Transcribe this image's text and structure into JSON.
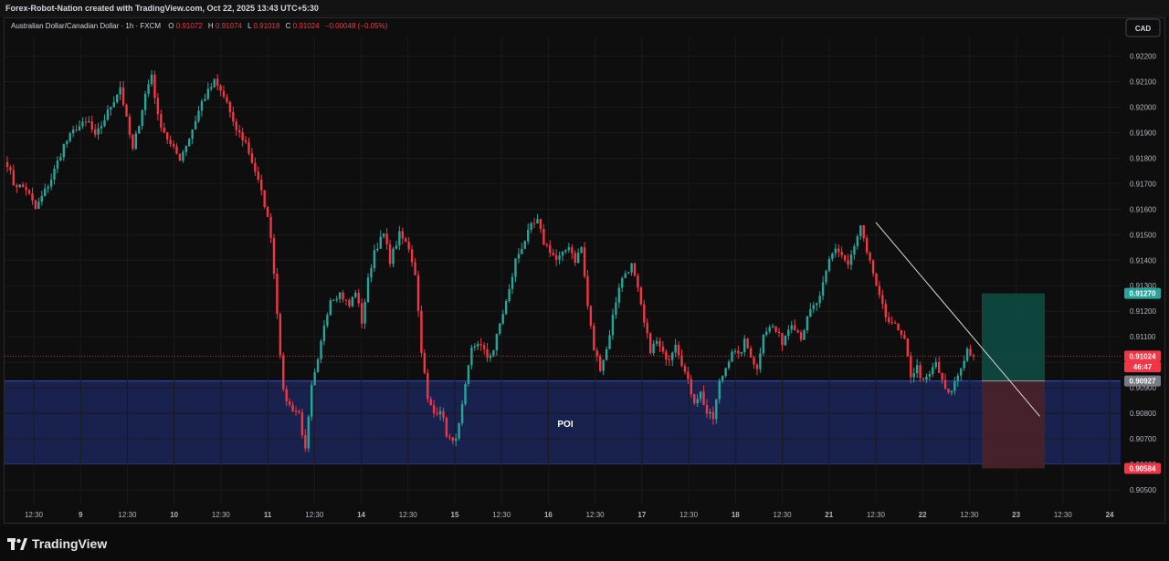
{
  "header": {
    "credit": "Forex-Robot-Nation created with TradingView.com, Oct 22, 2025 13:43 UTC+5:30"
  },
  "legend": {
    "symbol": "Australian Dollar/Canadian Dollar · 1h · FXCM",
    "o_label": "O",
    "o_value": "0.91072",
    "h_label": "H",
    "h_value": "0.91074",
    "l_label": "L",
    "l_value": "0.91018",
    "c_label": "C",
    "c_value": "0.91024",
    "change": "−0.00048 (−0.05%)"
  },
  "currency_button": "CAD",
  "footer": {
    "brand": "TradingView"
  },
  "colors": {
    "up": "#26a69a",
    "down": "#f23645",
    "poi_fill": "#1b2459",
    "poi_border": "#3a4bb0",
    "tp_fill": "#0d4a40",
    "sl_fill": "#4a2128",
    "trendline": "#d9d9d9"
  },
  "chart_data": {
    "type": "candlestick",
    "ylim": [
      0.9045,
      0.9225
    ],
    "y_ticks": [
      "0.92200",
      "0.92100",
      "0.92000",
      "0.91900",
      "0.91800",
      "0.91700",
      "0.91600",
      "0.91500",
      "0.91400",
      "0.91300",
      "0.91200",
      "0.91100",
      "0.91000",
      "0.90900",
      "0.90800",
      "0.90700",
      "0.90600",
      "0.90500"
    ],
    "x_ticks": [
      "12:30",
      "9",
      "12:30",
      "10",
      "12:30",
      "11",
      "12:30",
      "14",
      "12:30",
      "15",
      "12:30",
      "16",
      "12:30",
      "17",
      "12:30",
      "18",
      "12:30",
      "21",
      "12:30",
      "22",
      "12:30",
      "23",
      "12:30",
      "24"
    ],
    "bold_x_ticks": [
      "9",
      "10",
      "11",
      "14",
      "15",
      "16",
      "17",
      "18",
      "21",
      "22",
      "23",
      "24"
    ],
    "price_anchors": [
      [
        0,
        0.9178
      ],
      [
        2,
        0.917
      ],
      [
        6,
        0.9168
      ],
      [
        9,
        0.916
      ],
      [
        14,
        0.9172
      ],
      [
        18,
        0.9185
      ],
      [
        22,
        0.9192
      ],
      [
        26,
        0.9194
      ],
      [
        28,
        0.9188
      ],
      [
        32,
        0.9198
      ],
      [
        36,
        0.9208
      ],
      [
        38,
        0.9195
      ],
      [
        40,
        0.9183
      ],
      [
        44,
        0.9205
      ],
      [
        46,
        0.9213
      ],
      [
        48,
        0.9196
      ],
      [
        52,
        0.9185
      ],
      [
        55,
        0.918
      ],
      [
        58,
        0.9188
      ],
      [
        62,
        0.9202
      ],
      [
        66,
        0.921
      ],
      [
        70,
        0.9202
      ],
      [
        72,
        0.9193
      ],
      [
        76,
        0.9186
      ],
      [
        79,
        0.9175
      ],
      [
        82,
        0.9162
      ],
      [
        84,
        0.915
      ],
      [
        86,
        0.912
      ],
      [
        88,
        0.9088
      ],
      [
        90,
        0.9083
      ],
      [
        93,
        0.908
      ],
      [
        95,
        0.9065
      ],
      [
        97,
        0.909
      ],
      [
        99,
        0.91
      ],
      [
        101,
        0.9115
      ],
      [
        103,
        0.9125
      ],
      [
        106,
        0.9127
      ],
      [
        109,
        0.9122
      ],
      [
        111,
        0.9128
      ],
      [
        113,
        0.9116
      ],
      [
        115,
        0.9132
      ],
      [
        117,
        0.9144
      ],
      [
        120,
        0.915
      ],
      [
        122,
        0.914
      ],
      [
        125,
        0.915
      ],
      [
        128,
        0.9145
      ],
      [
        130,
        0.9135
      ],
      [
        132,
        0.9105
      ],
      [
        134,
        0.9085
      ],
      [
        136,
        0.908
      ],
      [
        138,
        0.9082
      ],
      [
        140,
        0.9072
      ],
      [
        142,
        0.9068
      ],
      [
        144,
        0.9075
      ],
      [
        146,
        0.909
      ],
      [
        148,
        0.9105
      ],
      [
        150,
        0.9108
      ],
      [
        153,
        0.9102
      ],
      [
        155,
        0.9105
      ],
      [
        157,
        0.9115
      ],
      [
        160,
        0.9128
      ],
      [
        162,
        0.914
      ],
      [
        165,
        0.9148
      ],
      [
        167,
        0.9153
      ],
      [
        169,
        0.9155
      ],
      [
        171,
        0.9147
      ],
      [
        173,
        0.9144
      ],
      [
        175,
        0.914
      ],
      [
        177,
        0.9142
      ],
      [
        179,
        0.9146
      ],
      [
        181,
        0.914
      ],
      [
        183,
        0.9145
      ],
      [
        185,
        0.9122
      ],
      [
        187,
        0.9105
      ],
      [
        189,
        0.9098
      ],
      [
        191,
        0.9105
      ],
      [
        193,
        0.9118
      ],
      [
        195,
        0.913
      ],
      [
        197,
        0.9135
      ],
      [
        199,
        0.9138
      ],
      [
        201,
        0.9128
      ],
      [
        203,
        0.9115
      ],
      [
        205,
        0.9105
      ],
      [
        207,
        0.9108
      ],
      [
        209,
        0.9103
      ],
      [
        211,
        0.9102
      ],
      [
        213,
        0.9108
      ],
      [
        215,
        0.91
      ],
      [
        217,
        0.9092
      ],
      [
        219,
        0.9085
      ],
      [
        221,
        0.9088
      ],
      [
        223,
        0.908
      ],
      [
        225,
        0.9078
      ],
      [
        227,
        0.9092
      ],
      [
        229,
        0.9098
      ],
      [
        231,
        0.9105
      ],
      [
        233,
        0.9102
      ],
      [
        235,
        0.9108
      ],
      [
        237,
        0.9103
      ],
      [
        239,
        0.9097
      ],
      [
        241,
        0.9112
      ],
      [
        244,
        0.9114
      ],
      [
        247,
        0.9108
      ],
      [
        250,
        0.9116
      ],
      [
        253,
        0.911
      ],
      [
        256,
        0.912
      ],
      [
        259,
        0.9125
      ],
      [
        262,
        0.914
      ],
      [
        264,
        0.9145
      ],
      [
        266,
        0.9142
      ],
      [
        268,
        0.9138
      ],
      [
        270,
        0.9145
      ],
      [
        272,
        0.9153
      ],
      [
        274,
        0.9142
      ],
      [
        276,
        0.9135
      ],
      [
        278,
        0.9125
      ],
      [
        280,
        0.9118
      ],
      [
        282,
        0.9116
      ],
      [
        284,
        0.9112
      ],
      [
        286,
        0.9108
      ],
      [
        288,
        0.9095
      ],
      [
        290,
        0.9098
      ],
      [
        292,
        0.9092
      ],
      [
        294,
        0.9095
      ],
      [
        296,
        0.91
      ],
      [
        298,
        0.9092
      ],
      [
        300,
        0.9087
      ],
      [
        302,
        0.9092
      ],
      [
        304,
        0.9098
      ],
      [
        306,
        0.9105
      ],
      [
        308,
        0.9102
      ]
    ],
    "last_price": 0.91024,
    "price_labels": [
      {
        "text": "0.91270",
        "value": 0.9127,
        "color": "#26a69a"
      },
      {
        "text": "0.91024",
        "value": 0.91024,
        "color": "#f23645"
      },
      {
        "text": "46:47",
        "value": 0.90982,
        "color": "#f23645"
      },
      {
        "text": "0.90927",
        "value": 0.90927,
        "color": "#787b86"
      },
      {
        "text": "0.90584",
        "value": 0.90584,
        "color": "#f23645"
      }
    ],
    "poi_zone": {
      "label": "POI",
      "top": 0.90927,
      "bottom": 0.90602
    },
    "long_position": {
      "entry": 0.90927,
      "target": 0.9127,
      "stop": 0.90584
    },
    "trendline": {
      "from": [
        276,
        0.91548
      ],
      "to": [
        330,
        0.90788
      ]
    }
  }
}
